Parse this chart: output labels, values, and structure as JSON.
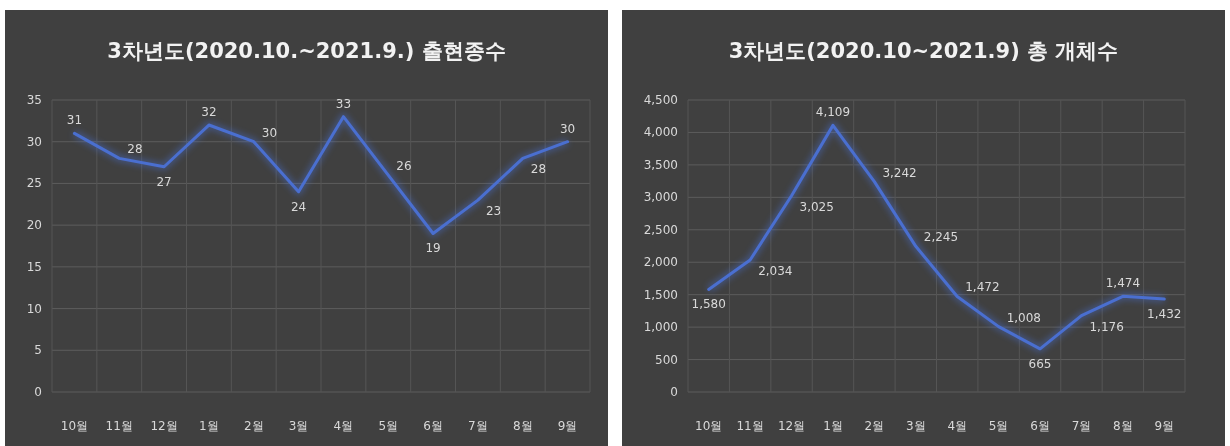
{
  "chart_data": [
    {
      "type": "line",
      "title": "3차년도(2020.10.~2021.9.) 출현종수",
      "categories": [
        "10월",
        "11월",
        "12월",
        "1월",
        "2월",
        "3월",
        "4월",
        "5월",
        "6월",
        "7월",
        "8월",
        "9월"
      ],
      "series": [
        {
          "color": "#4a6fd0",
          "values": [
            31,
            28,
            27,
            32,
            30,
            24,
            33,
            26,
            19,
            23,
            28,
            30
          ]
        }
      ],
      "ylim": [
        0,
        35
      ],
      "yticks": [
        0,
        5,
        10,
        15,
        20,
        25,
        30,
        35
      ],
      "grid": true,
      "data_labels": true,
      "marker": "none",
      "line_style": "solid"
    },
    {
      "type": "line",
      "title": "3차년도(2020.10~2021.9) 총 개체수",
      "categories": [
        "10월",
        "11월",
        "12월",
        "1월",
        "2월",
        "3월",
        "4월",
        "5월",
        "6월",
        "7월",
        "8월",
        "9월"
      ],
      "series": [
        {
          "color": "#4a6fd0",
          "values": [
            1580,
            2034,
            3025,
            4109,
            3242,
            2245,
            1472,
            1008,
            665,
            1176,
            1474,
            1432
          ],
          "value_labels": [
            "1,580",
            "2,034",
            "3,025",
            "4,109",
            "3,242",
            "2,245",
            "1,472",
            "1,008",
            "665",
            "1,176",
            "1,474",
            "1,432"
          ]
        }
      ],
      "ylim": [
        0,
        4500
      ],
      "yticks": [
        0,
        {
          "value": 500,
          "label": "500"
        },
        {
          "value": 1000,
          "label": "1,000"
        },
        {
          "value": 1500,
          "label": "1,500"
        },
        {
          "value": 2000,
          "label": "2,000"
        },
        {
          "value": 2500,
          "label": "2,500"
        },
        {
          "value": 3000,
          "label": "3,000"
        },
        {
          "value": 3500,
          "label": "3,500"
        },
        {
          "value": 4000,
          "label": "4,000"
        },
        {
          "value": 4500,
          "label": "4,500"
        }
      ],
      "grid": true,
      "marker": "none",
      "line_style": "solid"
    }
  ]
}
